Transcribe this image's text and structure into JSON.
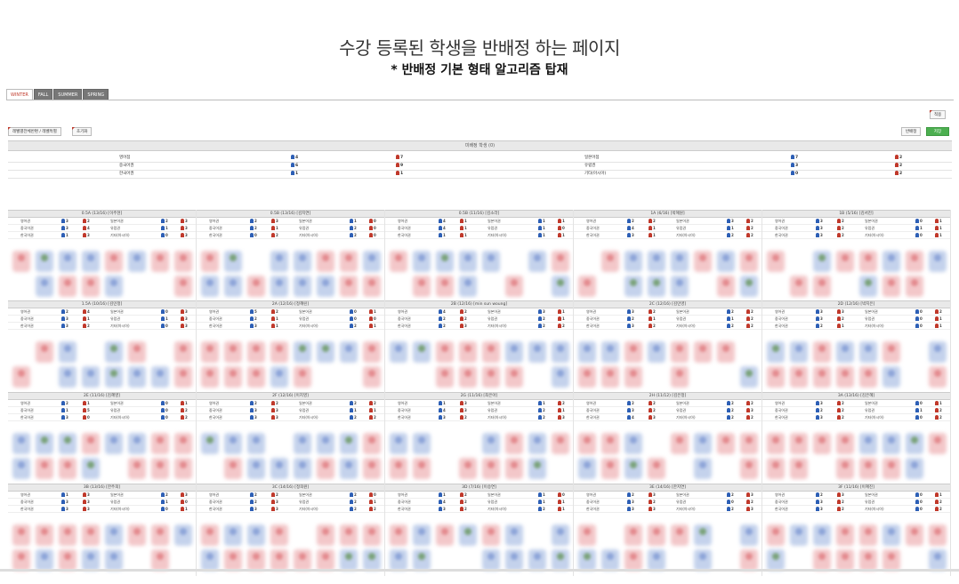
{
  "page": {
    "headline": "수강 등록된 학생을 반배정 하는 페이지",
    "subline": "* 반배정 기본 형태 알고리즘 탑재"
  },
  "tabs": [
    {
      "label": "WINTER",
      "active": true
    },
    {
      "label": "FALL",
      "active": false
    },
    {
      "label": "SUMMER",
      "active": false
    },
    {
      "label": "SPRING",
      "active": false
    }
  ],
  "toolbar": {
    "top_right_label": "적용",
    "filter_label": "레벨별전체반편 / 레벨특별",
    "reset_label": "초기화",
    "assign_label": "반배정",
    "confirm_label": "저장"
  },
  "summary": {
    "title": "미배정 학생 (0)",
    "rows": [
      {
        "left_label": "영어점",
        "left_m": "4",
        "left_f": "7",
        "right_label": "일본어점",
        "right_m": "7",
        "right_f": "2"
      },
      {
        "left_label": "중국어권",
        "left_m": "6",
        "left_f": "9",
        "right_label": "유럽권",
        "right_m": "3",
        "right_f": "2"
      },
      {
        "left_label": "한국어권",
        "left_m": "1",
        "left_f": "1",
        "right_label": "기타(아시아)",
        "right_m": "0",
        "right_f": "2"
      }
    ]
  },
  "row_labels": {
    "r1_left": "영어권",
    "r1_right": "일본어권",
    "r2_left": "중국어권",
    "r2_right": "유럽권",
    "r3_left": "한국어권",
    "r3_right": "기타(아시아)"
  },
  "classes": [
    {
      "title": "0.5A (13/16) [이주현]",
      "counts": [
        "3",
        "2",
        "2",
        "3",
        "3",
        "4",
        "1",
        "3",
        "1",
        "3",
        "0",
        "3"
      ]
    },
    {
      "title": "0.5B (13/16) [김지연]",
      "counts": [
        "2",
        "3",
        "1",
        "0",
        "2",
        "1",
        "2",
        "0",
        "0",
        "2",
        "2",
        "0"
      ]
    },
    {
      "title": "0.5B (11/16) [김소라]",
      "counts": [
        "4",
        "1",
        "1",
        "1",
        "4",
        "1",
        "1",
        "0",
        "1",
        "1",
        "1",
        "1"
      ]
    },
    {
      "title": "1A (6/16) [박혜원]",
      "counts": [
        "2",
        "2",
        "3",
        "2",
        "4",
        "1",
        "1",
        "2",
        "3",
        "1",
        "2",
        "2"
      ]
    },
    {
      "title": "1B (5/16) [김서진]",
      "counts": [
        "3",
        "2",
        "0",
        "1",
        "3",
        "2",
        "1",
        "1",
        "3",
        "2",
        "0",
        "1"
      ]
    },
    {
      "title": "1.5A (10/16) [김민정]",
      "counts": [
        "2",
        "4",
        "0",
        "3",
        "3",
        "1",
        "1",
        "3",
        "3",
        "2",
        "0",
        "3"
      ]
    },
    {
      "title": "2A (12/16) [정혜린]",
      "counts": [
        "5",
        "2",
        "0",
        "1",
        "2",
        "1",
        "0",
        "0",
        "3",
        "1",
        "2",
        "1"
      ]
    },
    {
      "title": "2B (12/16) [min sun woung]",
      "counts": [
        "4",
        "2",
        "3",
        "1",
        "2",
        "2",
        "2",
        "1",
        "2",
        "3",
        "2",
        "2"
      ]
    },
    {
      "title": "2C (12/16) [김민영]",
      "counts": [
        "3",
        "2",
        "2",
        "2",
        "2",
        "1",
        "1",
        "2",
        "3",
        "2",
        "2",
        "2"
      ]
    },
    {
      "title": "2D (12/16) [박지은]",
      "counts": [
        "3",
        "3",
        "0",
        "2",
        "3",
        "2",
        "0",
        "1",
        "2",
        "1",
        "0",
        "1"
      ]
    },
    {
      "title": "2E (11/16) [김혜영]",
      "counts": [
        "2",
        "1",
        "0",
        "1",
        "1",
        "5",
        "0",
        "2",
        "3",
        "0",
        "0",
        "2"
      ]
    },
    {
      "title": "2F (12/16) [이지영]",
      "counts": [
        "2",
        "2",
        "2",
        "2",
        "3",
        "3",
        "1",
        "1",
        "3",
        "3",
        "2",
        "2"
      ]
    },
    {
      "title": "2G (11/16) [최은아]",
      "counts": [
        "1",
        "3",
        "1",
        "2",
        "4",
        "3",
        "2",
        "1",
        "3",
        "2",
        "2",
        "3"
      ]
    },
    {
      "title": "2H (11/12) [김은정]",
      "counts": [
        "2",
        "2",
        "2",
        "2",
        "3",
        "2",
        "2",
        "3",
        "4",
        "3",
        "2",
        "2"
      ]
    },
    {
      "title": "3A (13/16) [김은혜]",
      "counts": [
        "3",
        "2",
        "0",
        "1",
        "2",
        "2",
        "1",
        "2",
        "3",
        "2",
        "0",
        "2"
      ]
    },
    {
      "title": "3B (13/16) [한주희]",
      "counts": [
        "1",
        "3",
        "2",
        "3",
        "3",
        "3",
        "1",
        "0",
        "3",
        "3",
        "0",
        "1"
      ]
    },
    {
      "title": "3C (14/16) [정희원]",
      "counts": [
        "2",
        "2",
        "2",
        "0",
        "2",
        "3",
        "2",
        "1",
        "3",
        "3",
        "2",
        "2"
      ]
    },
    {
      "title": "3D (7/16) [이승연]",
      "counts": [
        "1",
        "2",
        "1",
        "0",
        "4",
        "2",
        "1",
        "1",
        "3",
        "2",
        "2",
        "1"
      ]
    },
    {
      "title": "3E (14/16) [한지연]",
      "counts": [
        "2",
        "3",
        "2",
        "3",
        "3",
        "2",
        "0",
        "2",
        "3",
        "3",
        "2",
        "3"
      ]
    },
    {
      "title": "3F (11/16) [이혜진]",
      "counts": [
        "2",
        "3",
        "0",
        "1",
        "3",
        "2",
        "0",
        "2",
        "3",
        "2",
        "0",
        "2"
      ]
    }
  ],
  "colors": {
    "male_icon": "#2d5fb5",
    "female_icon": "#c0392b",
    "seat_blue": "#c4d2ec",
    "seat_red": "#f3c7c9",
    "confirm_green": "#4caf50"
  }
}
